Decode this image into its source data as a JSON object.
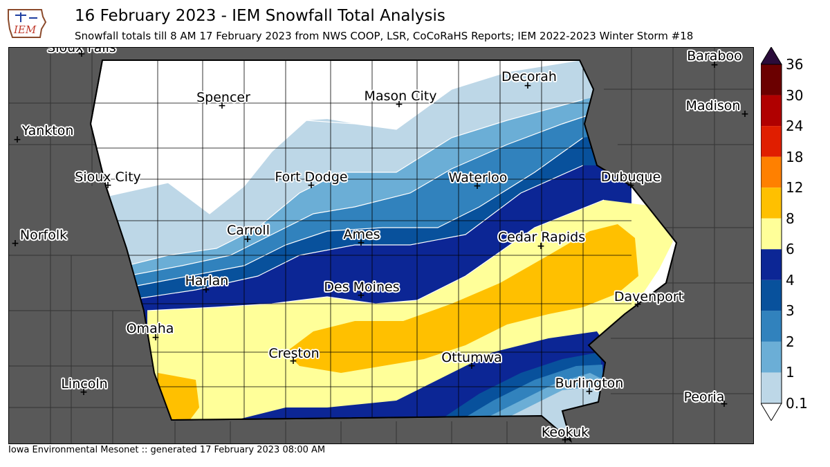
{
  "header": {
    "title": "16 February 2023 - IEM Snowfall Total Analysis",
    "subtitle": "Snowfall totals till 8 AM 17 February 2023 from NWS COOP, LSR, CoCoRaHS Reports; IEM 2022-2023 Winter Storm #18",
    "logo_text": "IEM"
  },
  "footer": {
    "text": "Iowa Environmental Mesonet :: generated 17 February 2023 08:00 AM"
  },
  "colorbar": {
    "labels": [
      "36",
      "30",
      "24",
      "18",
      "12",
      "8",
      "6",
      "4",
      "3",
      "2",
      "1",
      "0.1"
    ],
    "colors": [
      "#6b0000",
      "#b00000",
      "#e01e00",
      "#ff8000",
      "#ffc000",
      "#ffff99",
      "#0c2695",
      "#08519c",
      "#3182bd",
      "#6baed6",
      "#bdd7e7"
    ],
    "top_color": "#2b0c3a"
  },
  "cities": [
    {
      "name": "Sioux Falls"
    },
    {
      "name": "Baraboo"
    },
    {
      "name": "Decorah"
    },
    {
      "name": "Spencer"
    },
    {
      "name": "Mason City"
    },
    {
      "name": "Madison"
    },
    {
      "name": "Yankton"
    },
    {
      "name": "Sioux City"
    },
    {
      "name": "Fort Dodge"
    },
    {
      "name": "Waterloo"
    },
    {
      "name": "Dubuque"
    },
    {
      "name": "Norfolk"
    },
    {
      "name": "Carroll"
    },
    {
      "name": "Ames"
    },
    {
      "name": "Cedar Rapids"
    },
    {
      "name": "Harlan"
    },
    {
      "name": "Des Moines"
    },
    {
      "name": "Davenport"
    },
    {
      "name": "Omaha"
    },
    {
      "name": "Creston"
    },
    {
      "name": "Ottumwa"
    },
    {
      "name": "Burlington"
    },
    {
      "name": "Lincoln"
    },
    {
      "name": "Peoria"
    },
    {
      "name": "Keokuk"
    }
  ]
}
